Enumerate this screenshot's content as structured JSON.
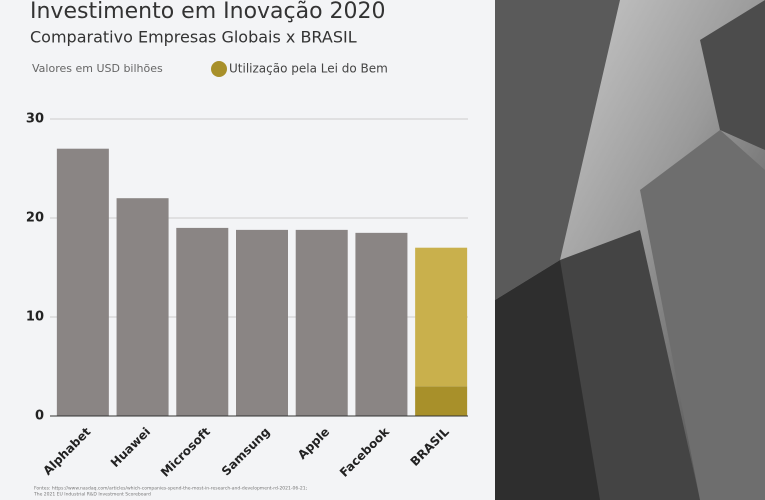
{
  "chart_data": {
    "type": "bar",
    "title": "Investimento em Inovação 2020",
    "subtitle": "Comparativo Empresas Globais x BRASIL",
    "units_label": "Valores em USD bilhões",
    "categories": [
      "Alphabet",
      "Huawei",
      "Microsoft",
      "Samsung",
      "Apple",
      "Facebook",
      "BRASIL"
    ],
    "series": [
      {
        "name": "Utilização pela Lei do Bem",
        "color": "#a8902a",
        "values": [
          null,
          null,
          null,
          null,
          null,
          null,
          3
        ]
      },
      {
        "colors": [
          "#8a8584",
          "#8a8584",
          "#8a8584",
          "#8a8584",
          "#8a8584",
          "#8a8584",
          "#c9b04c"
        ],
        "values": [
          27,
          22,
          19,
          18.8,
          18.8,
          18.5,
          14
        ]
      }
    ],
    "ylim": [
      0,
      30
    ],
    "yticks": [
      0,
      10,
      20,
      30
    ],
    "grid": true,
    "sources": [
      "Fontes: https://www.nasdaq.com/articles/which-companies-spend-the-most-in-research-and-development-rd-2021-06-21;",
      "The 2021 EU Industrial R&D Investment Scoreboard"
    ]
  }
}
